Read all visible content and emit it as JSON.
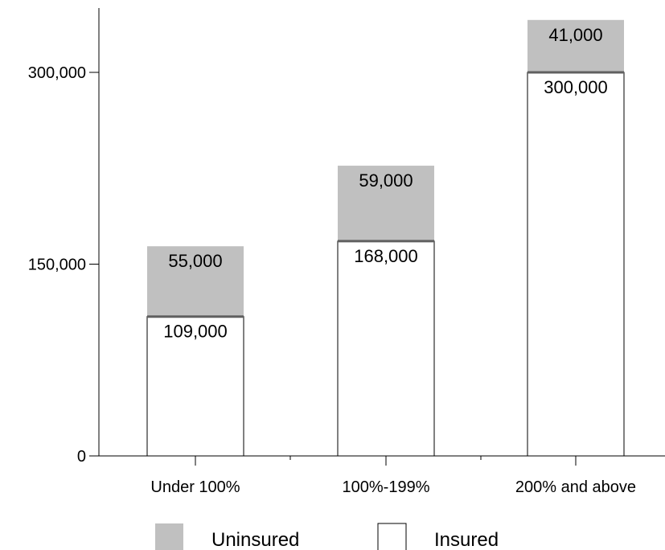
{
  "chart_data": {
    "type": "bar",
    "stacked": true,
    "categories": [
      "Under 100%",
      "100%-199%",
      "200% and above"
    ],
    "series": [
      {
        "name": "Insured",
        "values": [
          109000,
          168000,
          300000
        ],
        "labels": [
          "109,000",
          "168,000",
          "300,000"
        ],
        "color": "#ffffff"
      },
      {
        "name": "Uninsured",
        "values": [
          55000,
          59000,
          41000
        ],
        "labels": [
          "55,000",
          "59,000",
          "41,000"
        ],
        "color": "#c0c0c0"
      }
    ],
    "yticks": [
      0,
      150000,
      300000
    ],
    "ytick_labels": [
      "0",
      "150,000",
      "300,000"
    ],
    "ylim": [
      0,
      350000
    ],
    "title": "",
    "xlabel": "",
    "ylabel": "",
    "grid": false,
    "legend_position": "bottom"
  },
  "legend": {
    "items": [
      {
        "name": "Uninsured",
        "color": "#c0c0c0"
      },
      {
        "name": "Insured",
        "color": "#ffffff"
      }
    ]
  },
  "colors": {
    "insured_fill": "#ffffff",
    "uninsured_fill": "#c0c0c0",
    "outline": "#000000",
    "separator": "#606060"
  }
}
